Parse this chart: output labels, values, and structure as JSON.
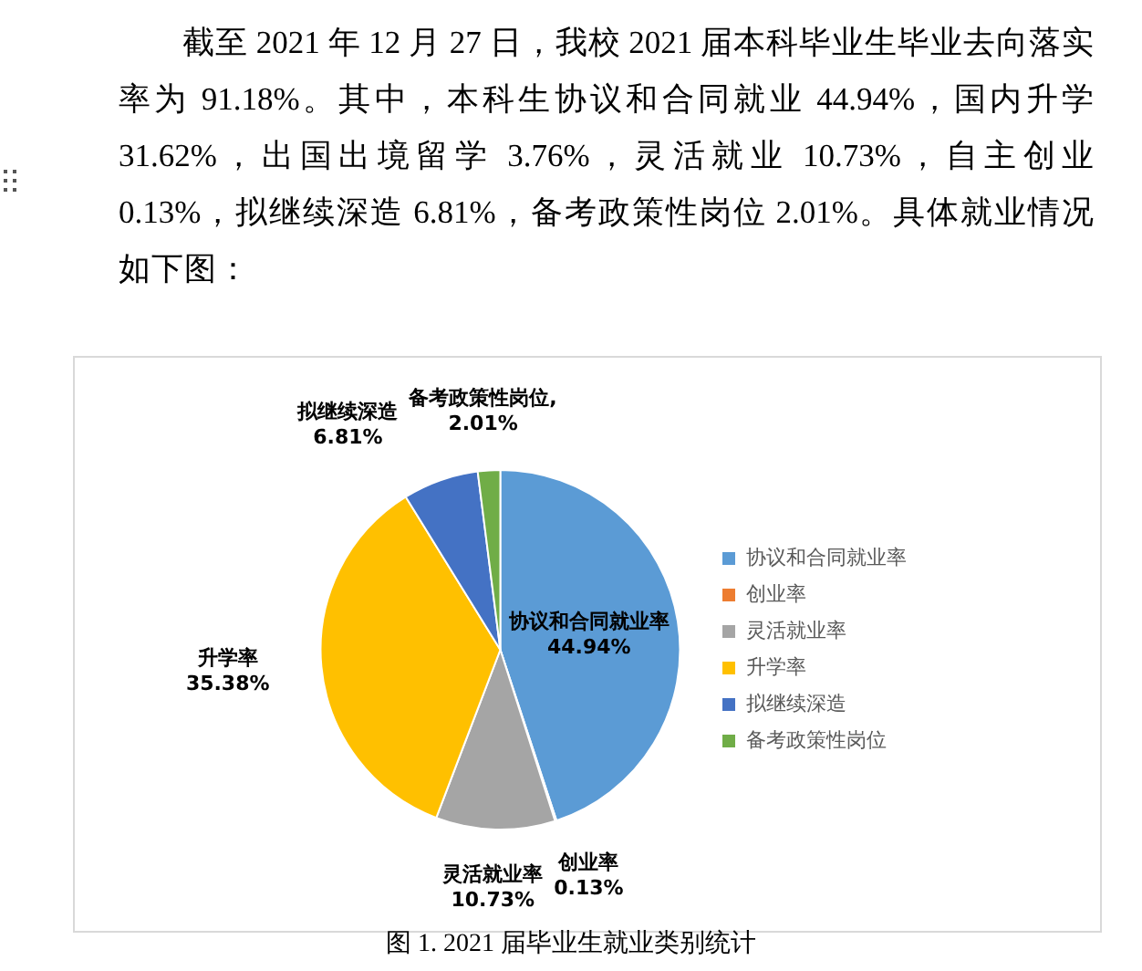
{
  "chart_data": {
    "type": "pie",
    "categories": [
      "协议和合同就业率",
      "创业率",
      "灵活就业率",
      "升学率",
      "拟继续深造",
      "备考政策性岗位"
    ],
    "values": [
      44.94,
      0.13,
      10.73,
      35.38,
      6.81,
      2.01
    ],
    "colors": [
      "#5b9bd5",
      "#ed7d31",
      "#a5a5a5",
      "#ffc000",
      "#4472c4",
      "#70ad47"
    ],
    "value_labels": [
      "协议和合同就业率\n44.94%",
      "创业率\n0.13%",
      "灵活就业率\n10.73%",
      "升学率\n35.38%",
      "拟继续深造\n6.81%",
      "备考政策性岗位,\n2.01%"
    ],
    "legend": "right",
    "annotations": [
      "截至 2021 年 12 月 27 日，我校 2021 届本科毕业生毕业去向落实率为 91.18%。其中，本科生协议和合同就业 44.94%，国内升学 31.62%，出国出境留学 3.76%，灵活就业 10.73%，自主创业 0.13%，拟继续深造 6.81%，备考政策性岗位 2.01%。具体就业情况如下图：",
      "图 1. 2021 届毕业生就业类别统计"
    ]
  }
}
